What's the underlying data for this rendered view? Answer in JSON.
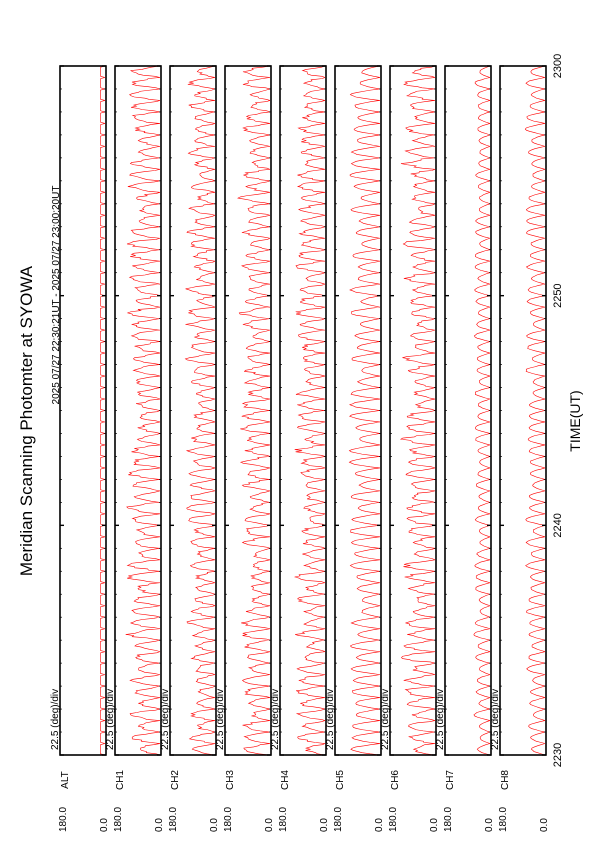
{
  "chart_data": {
    "type": "line",
    "title": "Meridian Scanning Photomter at SYOWA",
    "subtitle": "2025 07/27 22:30:21UT - 2025 07/27 23:00:20UT",
    "xlabel": "TIME(UT)",
    "x_ticks": [
      "2230",
      "2240",
      "2250",
      "2300"
    ],
    "scale_label": "22.5 (deg)/div",
    "panel_ymax_label": "180.0",
    "panel_ymin_label": "0.0",
    "orientation": "rotated-90-ccw",
    "grid": false,
    "series_color": "#ff0000",
    "panels": [
      {
        "name": "ALT",
        "traces": 60,
        "amplitude": 0.05,
        "shape": "flat"
      },
      {
        "name": "CH1",
        "traces": 60,
        "amplitude": 0.55,
        "shape": "noisy"
      },
      {
        "name": "CH2",
        "traces": 60,
        "amplitude": 0.5,
        "shape": "noisy"
      },
      {
        "name": "CH3",
        "traces": 60,
        "amplitude": 0.5,
        "shape": "noisy"
      },
      {
        "name": "CH4",
        "traces": 60,
        "amplitude": 0.5,
        "shape": "noisy"
      },
      {
        "name": "CH5",
        "traces": 60,
        "amplitude": 0.55,
        "shape": "arch"
      },
      {
        "name": "CH6",
        "traces": 60,
        "amplitude": 0.55,
        "shape": "noisy"
      },
      {
        "name": "CH7",
        "traces": 60,
        "amplitude": 0.3,
        "shape": "arch"
      },
      {
        "name": "CH8",
        "traces": 60,
        "amplitude": 0.35,
        "shape": "arch"
      }
    ]
  }
}
